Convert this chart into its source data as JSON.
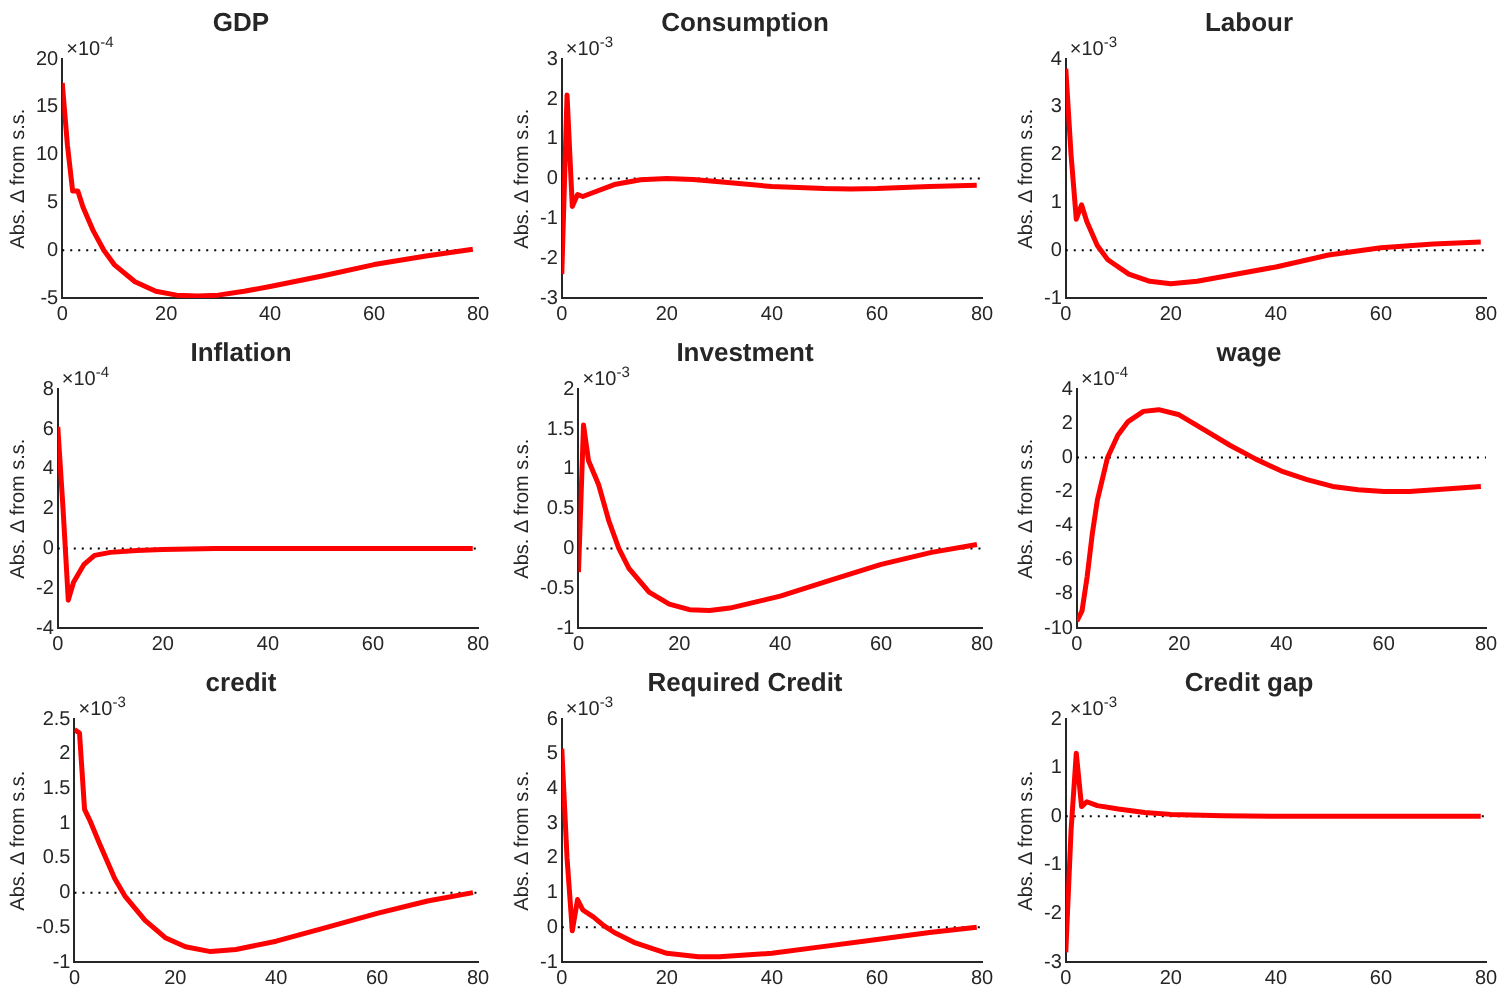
{
  "chart_data": [
    {
      "type": "line",
      "title": "GDP",
      "ylabel": "Abs. Δ from s.s.",
      "annotations": [
        "×10$^{-4}$"
      ],
      "x": [
        0,
        1,
        2,
        3,
        4,
        6,
        8,
        10,
        14,
        18,
        22,
        26,
        30,
        35,
        40,
        50,
        60,
        70,
        79
      ],
      "values": [
        17.5,
        11,
        6.2,
        6.2,
        4.5,
        2,
        0,
        -1.5,
        -3.3,
        -4.3,
        -4.7,
        -4.8,
        -4.7,
        -4.3,
        -3.8,
        -2.7,
        -1.5,
        -0.6,
        0.1
      ],
      "color": "#ff0000",
      "line_style": "solid",
      "xlim": [
        0,
        80
      ],
      "xticks": [
        0,
        20,
        40,
        60,
        80
      ],
      "ylim": [
        -5,
        20
      ],
      "yticks": [
        -5,
        0,
        5,
        10,
        15,
        20
      ],
      "grid": false,
      "ref_lines": [
        {
          "axis": "y",
          "value": 0,
          "color": "#000000",
          "line_style": "dotted"
        }
      ]
    },
    {
      "type": "line",
      "title": "Consumption",
      "ylabel": "Abs. Δ from s.s.",
      "annotations": [
        "×10$^{-3}$"
      ],
      "x": [
        0,
        1,
        2,
        3,
        4,
        6,
        10,
        15,
        20,
        25,
        30,
        40,
        50,
        55,
        60,
        70,
        79
      ],
      "values": [
        -2.4,
        2.1,
        -0.7,
        -0.4,
        -0.45,
        -0.35,
        -0.15,
        -0.03,
        0,
        -0.02,
        -0.08,
        -0.2,
        -0.25,
        -0.26,
        -0.25,
        -0.2,
        -0.17
      ],
      "color": "#ff0000",
      "line_style": "solid",
      "xlim": [
        0,
        80
      ],
      "xticks": [
        0,
        20,
        40,
        60,
        80
      ],
      "ylim": [
        -3,
        3
      ],
      "yticks": [
        -3,
        -2,
        -1,
        0,
        1,
        2,
        3
      ],
      "grid": false,
      "ref_lines": [
        {
          "axis": "y",
          "value": 0,
          "color": "#000000",
          "line_style": "dotted"
        }
      ]
    },
    {
      "type": "line",
      "title": "Labour",
      "ylabel": "Abs. Δ from s.s.",
      "annotations": [
        "×10$^{-3}$"
      ],
      "x": [
        0,
        1,
        2,
        3,
        4,
        6,
        8,
        12,
        16,
        20,
        25,
        30,
        40,
        50,
        60,
        70,
        79
      ],
      "values": [
        3.8,
        2,
        0.65,
        0.95,
        0.6,
        0.1,
        -0.2,
        -0.5,
        -0.65,
        -0.7,
        -0.65,
        -0.55,
        -0.35,
        -0.1,
        0.05,
        0.13,
        0.17
      ],
      "color": "#ff0000",
      "line_style": "solid",
      "xlim": [
        0,
        80
      ],
      "xticks": [
        0,
        20,
        40,
        60,
        80
      ],
      "ylim": [
        -1,
        4
      ],
      "yticks": [
        -1,
        0,
        1,
        2,
        3,
        4
      ],
      "grid": false,
      "ref_lines": [
        {
          "axis": "y",
          "value": 0,
          "color": "#000000",
          "line_style": "dotted"
        }
      ]
    },
    {
      "type": "line",
      "title": "Inflation",
      "ylabel": "Abs. Δ from s.s.",
      "annotations": [
        "×10$^{-4}$"
      ],
      "x": [
        0,
        1,
        2,
        3,
        5,
        7,
        10,
        15,
        20,
        30,
        79
      ],
      "values": [
        6.1,
        2,
        -2.6,
        -1.7,
        -0.8,
        -0.35,
        -0.2,
        -0.1,
        -0.05,
        0,
        0
      ],
      "color": "#ff0000",
      "line_style": "solid",
      "xlim": [
        0,
        80
      ],
      "xticks": [
        0,
        20,
        40,
        60,
        80
      ],
      "ylim": [
        -4,
        8
      ],
      "yticks": [
        -4,
        -2,
        0,
        2,
        4,
        6,
        8
      ],
      "grid": false,
      "ref_lines": [
        {
          "axis": "y",
          "value": 0,
          "color": "#000000",
          "line_style": "dotted"
        }
      ]
    },
    {
      "type": "line",
      "title": "Investment",
      "ylabel": "Abs. Δ from s.s.",
      "annotations": [
        "×10$^{-3}$"
      ],
      "x": [
        0,
        1,
        2,
        4,
        6,
        8,
        10,
        14,
        18,
        22,
        26,
        30,
        40,
        50,
        60,
        70,
        79
      ],
      "values": [
        -0.3,
        1.55,
        1.1,
        0.8,
        0.35,
        0,
        -0.25,
        -0.55,
        -0.7,
        -0.77,
        -0.78,
        -0.75,
        -0.6,
        -0.4,
        -0.2,
        -0.05,
        0.05
      ],
      "color": "#ff0000",
      "line_style": "solid",
      "xlim": [
        0,
        80
      ],
      "xticks": [
        0,
        20,
        40,
        60,
        80
      ],
      "ylim": [
        -1,
        2
      ],
      "yticks": [
        -1,
        -0.5,
        0,
        0.5,
        1,
        1.5,
        2
      ],
      "grid": false,
      "ref_lines": [
        {
          "axis": "y",
          "value": 0,
          "color": "#000000",
          "line_style": "dotted"
        }
      ]
    },
    {
      "type": "line",
      "title": "wage",
      "ylabel": "Abs. Δ from s.s.",
      "annotations": [
        "×10$^{-4}$"
      ],
      "x": [
        0,
        1,
        2,
        3,
        4,
        6,
        8,
        10,
        13,
        16,
        20,
        25,
        30,
        35,
        40,
        45,
        50,
        55,
        60,
        65,
        70,
        79
      ],
      "values": [
        -9.6,
        -9,
        -7,
        -4.5,
        -2.5,
        0,
        1.3,
        2.1,
        2.7,
        2.8,
        2.5,
        1.6,
        0.7,
        -0.1,
        -0.8,
        -1.3,
        -1.7,
        -1.9,
        -2,
        -2,
        -1.9,
        -1.7
      ],
      "color": "#ff0000",
      "line_style": "solid",
      "xlim": [
        0,
        80
      ],
      "xticks": [
        0,
        20,
        40,
        60,
        80
      ],
      "ylim": [
        -10,
        4
      ],
      "yticks": [
        -10,
        -8,
        -6,
        -4,
        -2,
        0,
        2,
        4
      ],
      "grid": false,
      "ref_lines": [
        {
          "axis": "y",
          "value": 0,
          "color": "#000000",
          "line_style": "dotted"
        }
      ]
    },
    {
      "type": "line",
      "title": "credit",
      "ylabel": "Abs. Δ from s.s.",
      "annotations": [
        "×10$^{-3}$"
      ],
      "x": [
        0,
        1,
        2,
        3,
        5,
        8,
        10,
        14,
        18,
        22,
        27,
        32,
        40,
        50,
        60,
        70,
        79
      ],
      "values": [
        2.35,
        2.3,
        1.2,
        1.05,
        0.7,
        0.2,
        -0.05,
        -0.4,
        -0.65,
        -0.78,
        -0.85,
        -0.82,
        -0.7,
        -0.5,
        -0.3,
        -0.12,
        0
      ],
      "color": "#ff0000",
      "line_style": "solid",
      "xlim": [
        0,
        80
      ],
      "xticks": [
        0,
        20,
        40,
        60,
        80
      ],
      "ylim": [
        -1,
        2.5
      ],
      "yticks": [
        -1,
        -0.5,
        0,
        0.5,
        1,
        1.5,
        2,
        2.5
      ],
      "grid": false,
      "ref_lines": [
        {
          "axis": "y",
          "value": 0,
          "color": "#000000",
          "line_style": "dotted"
        }
      ]
    },
    {
      "type": "line",
      "title": "Required Credit",
      "ylabel": "Abs. Δ from s.s.",
      "annotations": [
        "×10$^{-3}$"
      ],
      "x": [
        0,
        1,
        2,
        3,
        4,
        6,
        8,
        10,
        14,
        20,
        26,
        30,
        40,
        50,
        60,
        70,
        79
      ],
      "values": [
        5.15,
        2,
        -0.1,
        0.8,
        0.5,
        0.3,
        0.05,
        -0.15,
        -0.45,
        -0.75,
        -0.85,
        -0.85,
        -0.75,
        -0.55,
        -0.35,
        -0.15,
        0
      ],
      "color": "#ff0000",
      "line_style": "solid",
      "xlim": [
        0,
        80
      ],
      "xticks": [
        0,
        20,
        40,
        60,
        80
      ],
      "ylim": [
        -1,
        6
      ],
      "yticks": [
        -1,
        0,
        1,
        2,
        3,
        4,
        5,
        6
      ],
      "grid": false,
      "ref_lines": [
        {
          "axis": "y",
          "value": 0,
          "color": "#000000",
          "line_style": "dotted"
        }
      ]
    },
    {
      "type": "line",
      "title": "Credit gap",
      "ylabel": "Abs. Δ from s.s.",
      "annotations": [
        "×10$^{-3}$"
      ],
      "x": [
        0,
        1,
        2,
        3,
        4,
        6,
        10,
        15,
        20,
        30,
        40,
        79
      ],
      "values": [
        -2.8,
        -0.3,
        1.3,
        0.2,
        0.3,
        0.22,
        0.15,
        0.08,
        0.04,
        0.01,
        0,
        0
      ],
      "color": "#ff0000",
      "line_style": "solid",
      "xlim": [
        0,
        80
      ],
      "xticks": [
        0,
        20,
        40,
        60,
        80
      ],
      "ylim": [
        -3,
        2
      ],
      "yticks": [
        -3,
        -2,
        -1,
        0,
        1,
        2
      ],
      "grid": false,
      "ref_lines": [
        {
          "axis": "y",
          "value": 0,
          "color": "#000000",
          "line_style": "dotted"
        }
      ]
    }
  ]
}
